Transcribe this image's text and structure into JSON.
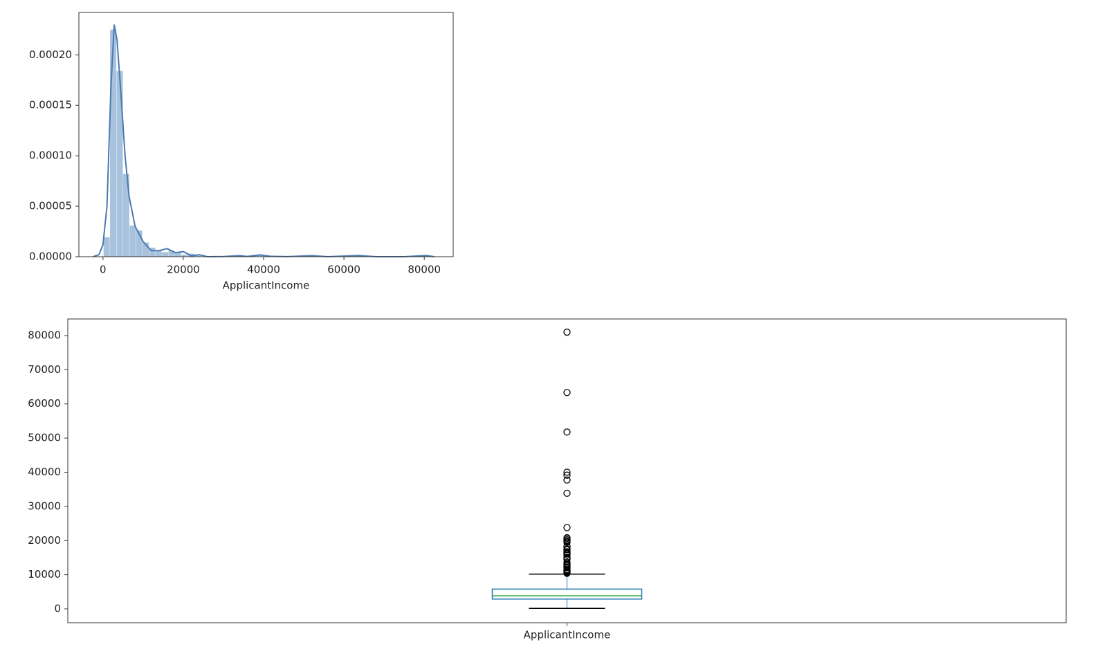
{
  "chart_data": [
    {
      "type": "histogram",
      "xlabel": "ApplicantIncome",
      "bins": [
        150,
        1767,
        3384,
        5001,
        6618,
        8235,
        9852,
        11469,
        13086,
        14703,
        16320,
        17937,
        19554,
        21171,
        22788,
        24405,
        26022,
        27639,
        29256,
        30873,
        32490,
        34107,
        35724,
        37341,
        38958,
        40575,
        42192,
        43809,
        45426,
        47043,
        48660,
        50277,
        51894,
        53511,
        55128,
        56745,
        58362,
        59979,
        61596,
        63213,
        64830,
        66447,
        68064,
        69681,
        71298,
        72915,
        74532,
        76149,
        77766,
        79383,
        81000
      ],
      "values": [
        1.92e-05,
        0.000225,
        0.000184,
        8.2e-05,
        3.08e-05,
        2.6e-05,
        1.4e-05,
        9e-06,
        6e-06,
        4.5e-06,
        6e-06,
        4e-06,
        2e-06,
        3e-06,
        1e-06,
        0,
        0,
        0,
        0,
        0,
        6e-07,
        0,
        6e-07,
        1.2e-06,
        1.2e-06,
        0,
        0,
        0,
        0,
        0,
        0,
        6e-07,
        0,
        0,
        0,
        0,
        0,
        0,
        0,
        6e-07,
        0,
        0,
        0,
        0,
        0,
        0,
        0,
        0,
        0,
        6e-07
      ],
      "color": "#a8c1dc",
      "kde": {
        "x": [
          -2500,
          -1000,
          0,
          1000,
          2000,
          2800,
          3500,
          4500,
          5500,
          6500,
          8000,
          10000,
          12000,
          14000,
          16000,
          18000,
          20000,
          22000,
          24000,
          26000,
          30000,
          34000,
          36000,
          39000,
          42000,
          46000,
          52000,
          56000,
          63500,
          68000,
          75000,
          80500,
          82500
        ],
        "y": [
          0,
          2e-06,
          1.2e-05,
          5e-05,
          0.00017,
          0.00023,
          0.000215,
          0.00016,
          0.0001,
          6e-05,
          3e-05,
          1.5e-05,
          6e-06,
          6e-06,
          8e-06,
          4e-06,
          5e-06,
          1e-06,
          2e-06,
          0,
          2e-07,
          1e-06,
          3e-07,
          1.8e-06,
          3e-07,
          1e-07,
          1e-06,
          0,
          1.2e-06,
          0,
          0,
          1.2e-06,
          0
        ],
        "color": "#4a7ab0"
      },
      "xlim": [
        -6000,
        87200
      ],
      "ylim": [
        0,
        0.000242
      ],
      "xticks": [
        0,
        20000,
        40000,
        60000,
        80000
      ],
      "yticks": [
        {
          "value": 0,
          "label": "0.00000"
        },
        {
          "value": 5e-05,
          "label": "0.00005"
        },
        {
          "value": 0.0001,
          "label": "0.00010"
        },
        {
          "value": 0.00015,
          "label": "0.00015"
        },
        {
          "value": 0.0002,
          "label": "0.00020"
        }
      ]
    },
    {
      "type": "box",
      "categories": [
        "ApplicantIncome"
      ],
      "whisker_low": 150,
      "q1": 2877,
      "median": 3812,
      "q3": 5795,
      "whisker_high": 10171,
      "outliers": [
        10408,
        10513,
        10750,
        10833,
        11000,
        11146,
        11250,
        11417,
        11500,
        12000,
        12173,
        12500,
        12841,
        12876,
        13262,
        13650,
        14583,
        14683,
        14866,
        14880,
        15000,
        15759,
        16120,
        16250,
        16250,
        16525,
        16667,
        16692,
        17263,
        17500,
        18165,
        18333,
        19484,
        19730,
        20166,
        20233,
        20667,
        20833,
        23803,
        33846,
        37719,
        39147,
        39999,
        51763,
        63337,
        81000
      ],
      "box_color": "#1f77b4",
      "median_color": "#2ca02c",
      "cap_color": "#000000",
      "ylim": [
        -4050,
        84860
      ],
      "yticks": [
        0,
        10000,
        20000,
        30000,
        40000,
        50000,
        60000,
        70000,
        80000
      ]
    }
  ]
}
